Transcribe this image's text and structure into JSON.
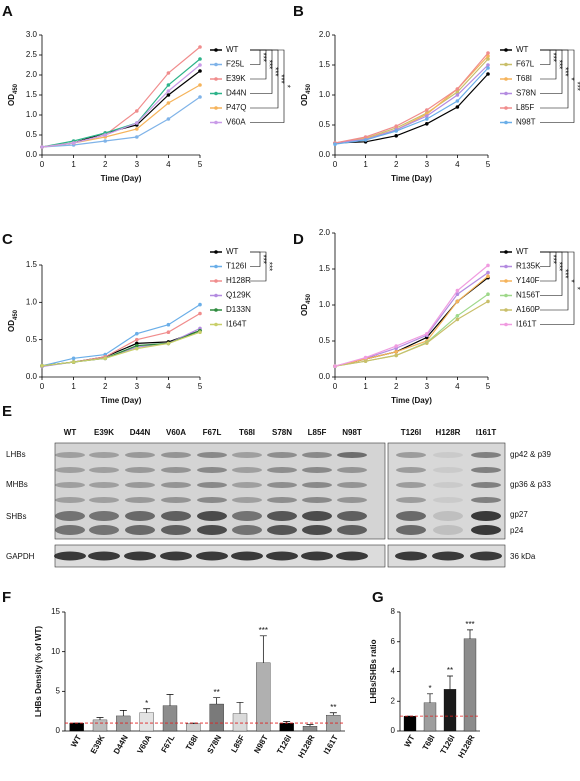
{
  "chart_data": [
    {
      "type": "line",
      "panel": "A",
      "xlabel": "Time (Day)",
      "ylabel": [
        "OD",
        "450"
      ],
      "x": [
        0,
        1,
        2,
        3,
        4,
        5
      ],
      "xlim": [
        0,
        5
      ],
      "xticks": [
        0,
        1,
        2,
        3,
        4,
        5
      ],
      "ylim": [
        0,
        3
      ],
      "yticks": [
        {
          "value": 0,
          "label": "0.0"
        },
        0.5,
        {
          "value": 1,
          "label": "1.0"
        },
        1.5,
        {
          "value": 2,
          "label": "2.0"
        },
        2.5,
        {
          "value": 3,
          "label": "3.0"
        }
      ],
      "series": [
        {
          "name": "WT",
          "color": "#000000",
          "values": [
            0.2,
            0.3,
            0.55,
            0.75,
            1.5,
            2.1
          ]
        },
        {
          "name": "F25L",
          "color": "#7fb3e8",
          "values": [
            0.2,
            0.25,
            0.35,
            0.45,
            0.9,
            1.45
          ],
          "sig": "***"
        },
        {
          "name": "E39K",
          "color": "#f08c8c",
          "values": [
            0.2,
            0.3,
            0.5,
            1.1,
            2.05,
            2.7
          ],
          "sig": "***"
        },
        {
          "name": "D44N",
          "color": "#2db38a",
          "values": [
            0.2,
            0.35,
            0.55,
            0.8,
            1.75,
            2.4
          ],
          "sig": "***"
        },
        {
          "name": "P47Q",
          "color": "#f5b35a",
          "values": [
            0.2,
            0.3,
            0.45,
            0.65,
            1.3,
            1.75
          ],
          "sig": "***"
        },
        {
          "name": "V60A",
          "color": "#c99be8",
          "values": [
            0.2,
            0.3,
            0.5,
            0.8,
            1.6,
            2.25
          ],
          "sig": "*"
        }
      ]
    },
    {
      "type": "line",
      "panel": "B",
      "xlabel": "Time (Day)",
      "ylabel": [
        "OD",
        "450"
      ],
      "x": [
        0,
        1,
        2,
        3,
        4,
        5
      ],
      "xlim": [
        0,
        5
      ],
      "xticks": [
        0,
        1,
        2,
        3,
        4,
        5
      ],
      "ylim": [
        0,
        2
      ],
      "yticks": [
        {
          "value": 0,
          "label": "0.0"
        },
        0.5,
        {
          "value": 1,
          "label": "1.0"
        },
        1.5,
        {
          "value": 2,
          "label": "2.0"
        }
      ],
      "series": [
        {
          "name": "WT",
          "color": "#000000",
          "values": [
            0.2,
            0.22,
            0.32,
            0.52,
            0.8,
            1.35
          ]
        },
        {
          "name": "F67L",
          "color": "#c9bf6a",
          "values": [
            0.2,
            0.28,
            0.45,
            0.7,
            1.05,
            1.6
          ],
          "sig": "***"
        },
        {
          "name": "T68I",
          "color": "#f5b35a",
          "values": [
            0.2,
            0.27,
            0.42,
            0.68,
            1.1,
            1.65
          ],
          "sig": "***"
        },
        {
          "name": "S78N",
          "color": "#b48be0",
          "values": [
            0.2,
            0.26,
            0.42,
            0.65,
            1.0,
            1.5
          ],
          "sig": "***"
        },
        {
          "name": "L85F",
          "color": "#f08c8c",
          "values": [
            0.2,
            0.3,
            0.48,
            0.75,
            1.1,
            1.7
          ],
          "sig": "*"
        },
        {
          "name": "N98T",
          "color": "#6aaee8",
          "values": [
            0.18,
            0.25,
            0.4,
            0.6,
            0.9,
            1.45
          ],
          "sig": "***"
        }
      ]
    },
    {
      "type": "line",
      "panel": "C",
      "xlabel": "Time (Day)",
      "ylabel": [
        "OD",
        "450"
      ],
      "x": [
        0,
        1,
        2,
        3,
        4,
        5
      ],
      "xlim": [
        0,
        5
      ],
      "xticks": [
        0,
        1,
        2,
        3,
        4,
        5
      ],
      "ylim": [
        0,
        1.5
      ],
      "yticks": [
        {
          "value": 0,
          "label": "0.0"
        },
        0.5,
        {
          "value": 1,
          "label": "1.0"
        },
        1.5
      ],
      "series": [
        {
          "name": "WT",
          "color": "#000000",
          "values": [
            0.15,
            0.2,
            0.27,
            0.45,
            0.47,
            0.62
          ]
        },
        {
          "name": "T126I",
          "color": "#6aaee8",
          "values": [
            0.15,
            0.25,
            0.3,
            0.58,
            0.7,
            0.97
          ],
          "sig": "***"
        },
        {
          "name": "H128R",
          "color": "#f08c8c",
          "values": [
            0.15,
            0.2,
            0.27,
            0.5,
            0.6,
            0.85
          ],
          "sig": "***"
        },
        {
          "name": "Q129K",
          "color": "#b48be0",
          "values": [
            0.14,
            0.2,
            0.25,
            0.4,
            0.45,
            0.65
          ]
        },
        {
          "name": "D133N",
          "color": "#2e8b3e",
          "values": [
            0.15,
            0.2,
            0.25,
            0.42,
            0.45,
            0.62
          ]
        },
        {
          "name": "I164T",
          "color": "#c9cf6a",
          "values": [
            0.15,
            0.2,
            0.25,
            0.38,
            0.45,
            0.6
          ]
        }
      ]
    },
    {
      "type": "line",
      "panel": "D",
      "xlabel": "Time (Day)",
      "ylabel": [
        "OD",
        "450"
      ],
      "x": [
        0,
        1,
        2,
        3,
        4,
        5
      ],
      "xlim": [
        0,
        5
      ],
      "xticks": [
        0,
        1,
        2,
        3,
        4,
        5
      ],
      "ylim": [
        0,
        2
      ],
      "yticks": [
        {
          "value": 0,
          "label": "0.0"
        },
        0.5,
        {
          "value": 1,
          "label": "1.0"
        },
        1.5,
        {
          "value": 2,
          "label": "2.0"
        }
      ],
      "series": [
        {
          "name": "WT",
          "color": "#000000",
          "values": [
            0.15,
            0.25,
            0.35,
            0.55,
            1.05,
            1.38
          ]
        },
        {
          "name": "R135K",
          "color": "#b48be0",
          "values": [
            0.15,
            0.26,
            0.4,
            0.58,
            1.15,
            1.45
          ],
          "sig": "***"
        },
        {
          "name": "Y140F",
          "color": "#f5b35a",
          "values": [
            0.15,
            0.25,
            0.35,
            0.5,
            1.05,
            1.4
          ],
          "sig": "***"
        },
        {
          "name": "N156T",
          "color": "#9fd88a",
          "values": [
            0.15,
            0.22,
            0.3,
            0.48,
            0.85,
            1.15
          ],
          "sig": "***"
        },
        {
          "name": "A160P",
          "color": "#c9bf6a",
          "values": [
            0.15,
            0.22,
            0.3,
            0.47,
            0.8,
            1.05
          ],
          "sig": "*"
        },
        {
          "name": "I161T",
          "color": "#f09be0",
          "values": [
            0.15,
            0.27,
            0.43,
            0.6,
            1.2,
            1.55
          ],
          "sig": "*"
        }
      ]
    },
    {
      "type": "bar",
      "panel": "F",
      "ylabel": "LHBs Density (% of WT)",
      "categories": [
        "WT",
        "E39K",
        "D44N",
        "V60A",
        "F67L",
        "T68I",
        "S78N",
        "L85F",
        "N98T",
        "T126I",
        "H128R",
        "I161T"
      ],
      "values": [
        1,
        1.4,
        1.9,
        2.3,
        3.2,
        0.9,
        3.4,
        2.2,
        8.6,
        1.0,
        0.6,
        2.0
      ],
      "errors": [
        0,
        0.3,
        0.7,
        0.5,
        1.4,
        0.1,
        0.8,
        1.4,
        3.4,
        0.2,
        0.2,
        0.3
      ],
      "sig": [
        null,
        null,
        null,
        "*",
        null,
        null,
        "**",
        null,
        "***",
        null,
        null,
        "**"
      ],
      "colors": [
        "#000000",
        "#bdbdbd",
        "#9e9e9e",
        "#e3e3e3",
        "#8c8c8c",
        "#cfcfcf",
        "#7a7a7a",
        "#dadada",
        "#b0b0b0",
        "#000000",
        "#8c8c8c",
        "#a6a6a6"
      ],
      "ylim": [
        0,
        15
      ],
      "yticks": [
        0,
        5,
        10,
        15
      ],
      "refline": 1,
      "refcolor": "#e02020"
    },
    {
      "type": "bar",
      "panel": "G",
      "ylabel": "LHBs/SHBs ratio",
      "categories": [
        "WT",
        "T68I",
        "T126I",
        "H128R"
      ],
      "values": [
        1,
        1.9,
        2.8,
        6.2
      ],
      "errors": [
        0,
        0.6,
        0.9,
        0.6
      ],
      "sig": [
        null,
        "*",
        "**",
        "***"
      ],
      "colors": [
        "#000000",
        "#9e9e9e",
        "#1a1a1a",
        "#8c8c8c"
      ],
      "ylim": [
        0,
        8
      ],
      "yticks": [
        0,
        2,
        4,
        6,
        8
      ],
      "refline": 1,
      "refcolor": "#e02020"
    }
  ],
  "blot": {
    "panel": "E",
    "lanes": [
      "WT",
      "E39K",
      "D44N",
      "V60A",
      "F67L",
      "T68I",
      "S78N",
      "L85F",
      "N98T",
      "T126I",
      "H128R",
      "I161T"
    ],
    "left_labels": [
      "LHBs",
      "MHBs",
      "SHBs",
      "GAPDH"
    ],
    "right_labels": [
      "gp42 & p39",
      "gp36 & p33",
      "gp27",
      "p24",
      "36 kDa"
    ]
  }
}
